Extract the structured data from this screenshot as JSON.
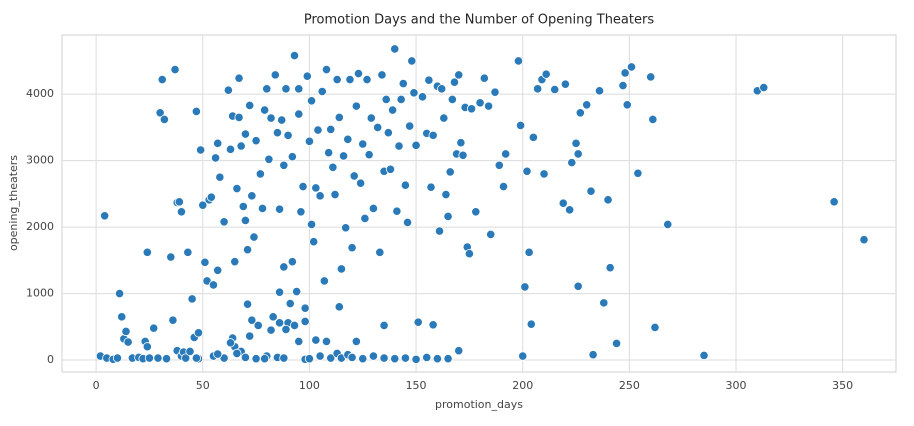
{
  "chart_data": {
    "type": "scatter",
    "title": "Promotion Days and the Number of Opening Theaters",
    "x_label": "promotion_days",
    "y_label": "opening_theaters",
    "color": "#2a7ab9",
    "grid": true,
    "xlim": [
      -16,
      375
    ],
    "ylim": [
      -180,
      4890
    ],
    "xticks": [
      0,
      50,
      100,
      150,
      200,
      250,
      300,
      350
    ],
    "yticks": [
      0,
      1000,
      2000,
      3000,
      4000
    ],
    "x": [
      2,
      4,
      5,
      8,
      10,
      11,
      12,
      13,
      14,
      15,
      17,
      20,
      22,
      23,
      24,
      24,
      25,
      27,
      29,
      30,
      31,
      32,
      33,
      35,
      36,
      37,
      38,
      38,
      39,
      40,
      40,
      41,
      42,
      43,
      44,
      45,
      46,
      47,
      48,
      48,
      49,
      50,
      51,
      52,
      53,
      54,
      55,
      56,
      57,
      57,
      58,
      60,
      60,
      62,
      63,
      64,
      64,
      65,
      66,
      67,
      67,
      68,
      69,
      70,
      70,
      71,
      71,
      72,
      73,
      73,
      74,
      75,
      76,
      77,
      78,
      79,
      80,
      81,
      82,
      83,
      84,
      85,
      86,
      86,
      87,
      88,
      88,
      89,
      90,
      91,
      92,
      92,
      93,
      94,
      95,
      95,
      96,
      97,
      98,
      99,
      100,
      101,
      101,
      102,
      103,
      104,
      105,
      106,
      107,
      108,
      109,
      110,
      111,
      112,
      113,
      114,
      115,
      116,
      117,
      118,
      119,
      120,
      121,
      122,
      123,
      124,
      125,
      126,
      127,
      128,
      129,
      130,
      132,
      133,
      134,
      135,
      136,
      137,
      138,
      139,
      140,
      141,
      142,
      143,
      144,
      145,
      146,
      147,
      148,
      149,
      150,
      151,
      153,
      155,
      156,
      157,
      158,
      160,
      161,
      162,
      163,
      164,
      165,
      166,
      167,
      168,
      169,
      170,
      171,
      172,
      173,
      174,
      175,
      176,
      178,
      180,
      182,
      184,
      185,
      187,
      189,
      191,
      192,
      198,
      199,
      200,
      201,
      202,
      203,
      204,
      205,
      207,
      209,
      210,
      211,
      215,
      219,
      220,
      222,
      223,
      225,
      226,
      226,
      227,
      230,
      232,
      233,
      236,
      238,
      240,
      241,
      244,
      247,
      248,
      249,
      251,
      254,
      260,
      261,
      262,
      268,
      285,
      310,
      313,
      346,
      360,
      60,
      65,
      68,
      70,
      72,
      75,
      80,
      85,
      88,
      90,
      95,
      98,
      100,
      105,
      108,
      110,
      113,
      115,
      118,
      120,
      122,
      125,
      130,
      135,
      140,
      145,
      150,
      155,
      160,
      165,
      170,
      135,
      158,
      98,
      114,
      103,
      93,
      89,
      86,
      79,
      82,
      66,
      63,
      55,
      57,
      47
    ],
    "values": [
      60,
      2170,
      30,
      10,
      30,
      1000,
      650,
      320,
      430,
      270,
      30,
      40,
      20,
      280,
      1620,
      200,
      30,
      480,
      30,
      3720,
      4220,
      3620,
      20,
      1550,
      600,
      4370,
      2370,
      140,
      2380,
      2230,
      60,
      120,
      30,
      1620,
      130,
      920,
      340,
      3740,
      410,
      20,
      3160,
      2330,
      1470,
      1190,
      2410,
      2450,
      1130,
      3040,
      3260,
      1350,
      2750,
      2080,
      20,
      4060,
      3170,
      3670,
      330,
      1480,
      2580,
      3650,
      4240,
      3220,
      2310,
      3400,
      2100,
      1660,
      840,
      3830,
      2470,
      600,
      1850,
      3300,
      520,
      2800,
      2280,
      3760,
      4080,
      3020,
      3640,
      650,
      4290,
      3420,
      2270,
      1020,
      3610,
      1400,
      2930,
      4080,
      3380,
      850,
      1480,
      3060,
      4580,
      1030,
      3700,
      4080,
      2230,
      2610,
      580,
      4270,
      3290,
      2040,
      3900,
      1780,
      2590,
      3460,
      2470,
      4040,
      1190,
      4370,
      3120,
      3470,
      2900,
      2490,
      4220,
      3650,
      1370,
      3070,
      1990,
      3320,
      4220,
      1690,
      2770,
      3820,
      4310,
      2660,
      3250,
      2130,
      4220,
      3090,
      3640,
      2280,
      3500,
      1620,
      4290,
      2840,
      3920,
      3420,
      2870,
      3760,
      4680,
      2240,
      3220,
      3920,
      4160,
      2630,
      2070,
      3520,
      4500,
      4020,
      3230,
      570,
      3960,
      3410,
      4210,
      2600,
      3380,
      4120,
      1940,
      4080,
      3640,
      2490,
      2160,
      2830,
      3920,
      4180,
      3100,
      4290,
      3270,
      3080,
      3800,
      1700,
      1600,
      3780,
      2230,
      3870,
      4240,
      3820,
      1890,
      4030,
      2930,
      2610,
      3100,
      4500,
      3530,
      60,
      1100,
      2840,
      1620,
      540,
      3350,
      4080,
      4220,
      2800,
      4300,
      4070,
      2360,
      4150,
      2260,
      2970,
      3260,
      3100,
      1110,
      3720,
      3840,
      2540,
      80,
      4050,
      860,
      2410,
      1390,
      250,
      4130,
      4320,
      3840,
      4410,
      2810,
      4260,
      3620,
      490,
      2040,
      70,
      4050,
      4100,
      2380,
      1810,
      30,
      200,
      130,
      40,
      360,
      20,
      60,
      40,
      30,
      560,
      280,
      10,
      20,
      60,
      280,
      30,
      100,
      30,
      80,
      40,
      280,
      20,
      60,
      30,
      20,
      30,
      10,
      40,
      20,
      20,
      140,
      520,
      530,
      780,
      800,
      300,
      520,
      460,
      560,
      20,
      450,
      100,
      260,
      60,
      90,
      30
    ]
  }
}
